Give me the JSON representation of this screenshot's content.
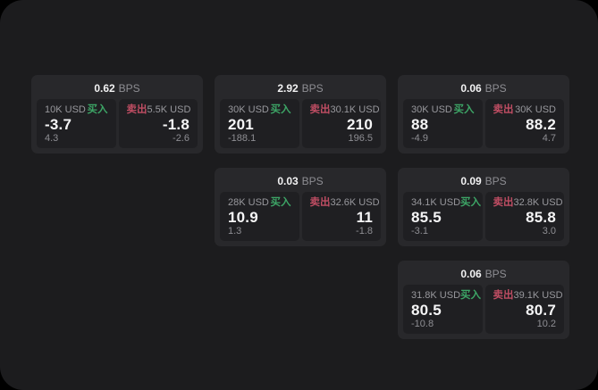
{
  "theme": {
    "page_bg": "#1c1c1e",
    "card_bg": "#28282b",
    "panel_bg": "#1f1f22",
    "buy_color": "#3da566",
    "sell_color": "#bf4d63",
    "muted_text": "#8e8e93",
    "value_text": "#f5f5f6"
  },
  "labels": {
    "bps": "BPS",
    "buy": "买入",
    "sell": "卖出"
  },
  "cards": [
    {
      "row": 1,
      "col": 1,
      "bps": "0.62",
      "buy": {
        "size": "10K USD",
        "value": "-3.7",
        "delta": "4.3"
      },
      "sell": {
        "size": "5.5K USD",
        "value": "-1.8",
        "delta": "-2.6"
      }
    },
    {
      "row": 1,
      "col": 2,
      "bps": "2.92",
      "buy": {
        "size": "30K USD",
        "value": "201",
        "delta": "-188.1"
      },
      "sell": {
        "size": "30.1K USD",
        "value": "210",
        "delta": "196.5"
      }
    },
    {
      "row": 1,
      "col": 3,
      "bps": "0.06",
      "buy": {
        "size": "30K USD",
        "value": "88",
        "delta": "-4.9"
      },
      "sell": {
        "size": "30K USD",
        "value": "88.2",
        "delta": "4.7"
      }
    },
    {
      "row": 2,
      "col": 2,
      "bps": "0.03",
      "buy": {
        "size": "28K USD",
        "value": "10.9",
        "delta": "1.3"
      },
      "sell": {
        "size": "32.6K USD",
        "value": "11",
        "delta": "-1.8"
      }
    },
    {
      "row": 2,
      "col": 3,
      "bps": "0.09",
      "buy": {
        "size": "34.1K USD",
        "value": "85.5",
        "delta": "-3.1"
      },
      "sell": {
        "size": "32.8K USD",
        "value": "85.8",
        "delta": "3.0"
      }
    },
    {
      "row": 3,
      "col": 3,
      "bps": "0.06",
      "buy": {
        "size": "31.8K USD",
        "value": "80.5",
        "delta": "-10.8"
      },
      "sell": {
        "size": "39.1K USD",
        "value": "80.7",
        "delta": "10.2"
      }
    }
  ]
}
